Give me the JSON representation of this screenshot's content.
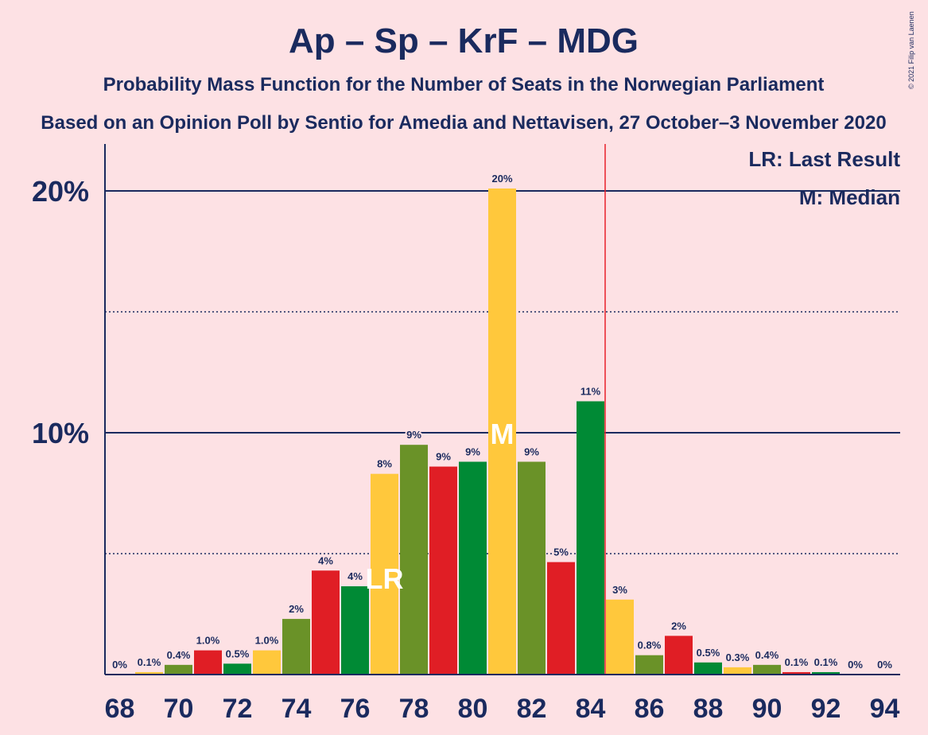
{
  "chart_data": {
    "type": "bar",
    "title": "Ap – Sp – KrF – MDG",
    "subtitle1": "Probability Mass Function for the Number of Seats in the Norwegian Parliament",
    "subtitle2": "Based on an Opinion Poll by Sentio for Amedia and Nettavisen, 27 October–3 November 2020",
    "copyright": "© 2021 Filip van Laenen",
    "legend": {
      "lr": "LR: Last Result",
      "m": "M: Median"
    },
    "y_ticks": [
      {
        "value": 10,
        "label": "10%"
      },
      {
        "value": 20,
        "label": "20%"
      }
    ],
    "y_dotted": [
      5,
      15
    ],
    "ylim": [
      0,
      22
    ],
    "majority_line": 85,
    "last_result": 77,
    "median": 81,
    "colors": [
      "#008a35",
      "#ffc83c",
      "#6a9228",
      "#e01e25"
    ],
    "x_ticks": [
      "68",
      "70",
      "72",
      "74",
      "76",
      "78",
      "80",
      "82",
      "84",
      "86",
      "88",
      "90",
      "92",
      "94"
    ],
    "bars": [
      {
        "seats": 68,
        "value": 0.0,
        "label": "0%"
      },
      {
        "seats": 69,
        "value": 0.1,
        "label": "0.1%"
      },
      {
        "seats": 70,
        "value": 0.4,
        "label": "0.4%"
      },
      {
        "seats": 71,
        "value": 1.0,
        "label": "1.0%"
      },
      {
        "seats": 72,
        "value": 0.45,
        "label": "0.5%"
      },
      {
        "seats": 73,
        "value": 1.0,
        "label": "1.0%"
      },
      {
        "seats": 74,
        "value": 2.3,
        "label": "2%"
      },
      {
        "seats": 75,
        "value": 4.3,
        "label": "4%"
      },
      {
        "seats": 76,
        "value": 3.65,
        "label": "4%"
      },
      {
        "seats": 77,
        "value": 8.3,
        "label": "8%"
      },
      {
        "seats": 78,
        "value": 9.5,
        "label": "9%"
      },
      {
        "seats": 79,
        "value": 8.6,
        "label": "9%"
      },
      {
        "seats": 80,
        "value": 8.8,
        "label": "9%"
      },
      {
        "seats": 81,
        "value": 20.1,
        "label": "20%"
      },
      {
        "seats": 82,
        "value": 8.8,
        "label": "9%"
      },
      {
        "seats": 83,
        "value": 4.65,
        "label": "5%"
      },
      {
        "seats": 84,
        "value": 11.3,
        "label": "11%"
      },
      {
        "seats": 85,
        "value": 3.1,
        "label": "3%"
      },
      {
        "seats": 86,
        "value": 0.8,
        "label": "0.8%"
      },
      {
        "seats": 87,
        "value": 1.6,
        "label": "2%"
      },
      {
        "seats": 88,
        "value": 0.5,
        "label": "0.5%"
      },
      {
        "seats": 89,
        "value": 0.3,
        "label": "0.3%"
      },
      {
        "seats": 90,
        "value": 0.4,
        "label": "0.4%"
      },
      {
        "seats": 91,
        "value": 0.1,
        "label": "0.1%"
      },
      {
        "seats": 92,
        "value": 0.1,
        "label": "0.1%"
      },
      {
        "seats": 93,
        "value": 0.0,
        "label": "0%"
      },
      {
        "seats": 94,
        "value": 0.0,
        "label": "0%"
      }
    ]
  }
}
